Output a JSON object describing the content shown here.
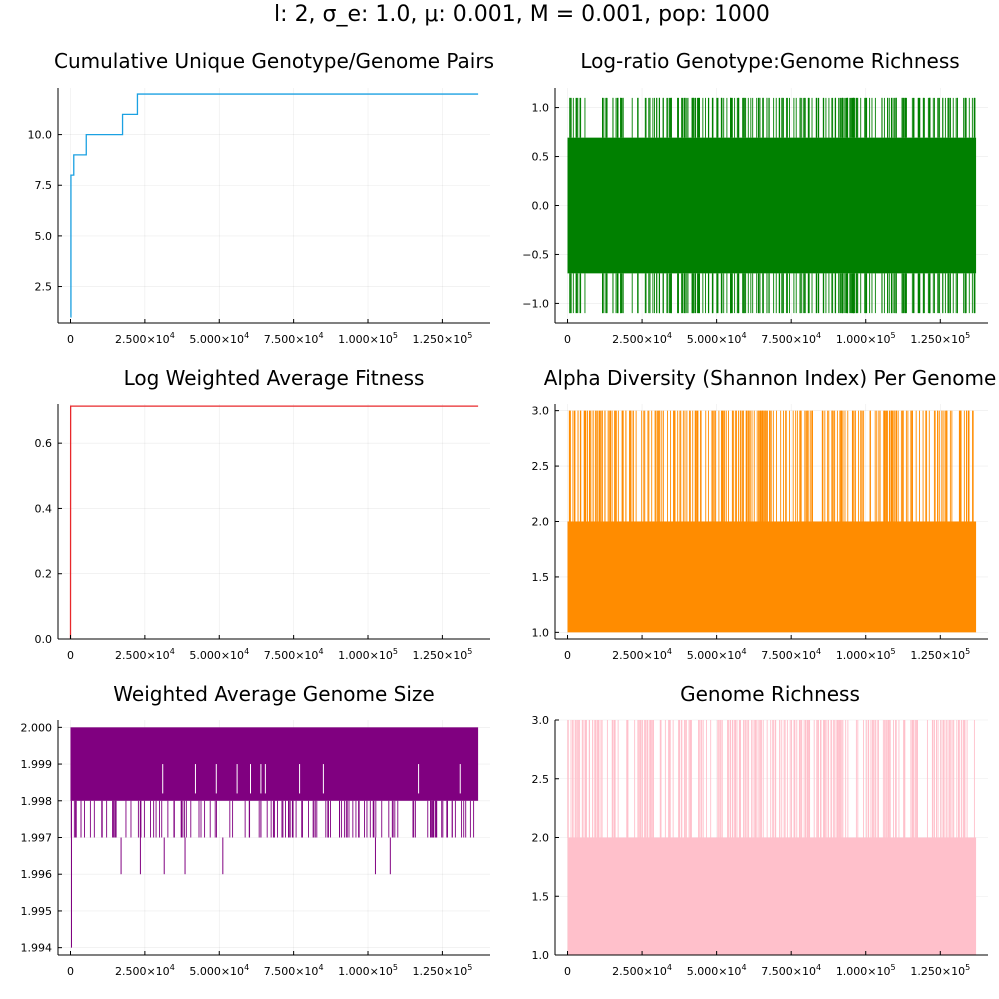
{
  "figure_title": "l: 2, σ_e: 1.0, μ: 0.001, M = 0.001, pop: 1000",
  "chart_data": [
    {
      "type": "line",
      "title": "Cumulative Unique Genotype/Genome Pairs",
      "color": "#1ba1e2",
      "render": "step",
      "xlim": [
        -4200,
        141000
      ],
      "ylim": [
        0.7,
        12.3
      ],
      "xticks": [
        0,
        25000,
        50000,
        75000,
        100000,
        125000
      ],
      "xtick_labels": [
        {
          "base": "0",
          "exp": ""
        },
        {
          "base": "2.500×10",
          "exp": "4"
        },
        {
          "base": "5.000×10",
          "exp": "4"
        },
        {
          "base": "7.500×10",
          "exp": "4"
        },
        {
          "base": "1.000×10",
          "exp": "5"
        },
        {
          "base": "1.250×10",
          "exp": "5"
        }
      ],
      "yticks": [
        2.5,
        5.0,
        7.5,
        10.0
      ],
      "ytick_labels": [
        "2.5",
        "5.0",
        "7.5",
        "10.0"
      ],
      "x": [
        0,
        150,
        150,
        1100,
        1100,
        5300,
        5300,
        17500,
        17500,
        22500,
        22500,
        137000
      ],
      "y": [
        1,
        1,
        8,
        8,
        9,
        9,
        10,
        10,
        11,
        11,
        12,
        12
      ]
    },
    {
      "type": "line",
      "title": "Log-ratio Genotype:Genome Richness",
      "color": "#008000",
      "render": "band",
      "xlim": [
        -4200,
        141000
      ],
      "ylim": [
        -1.2,
        1.2
      ],
      "xticks": [
        0,
        25000,
        50000,
        75000,
        100000,
        125000
      ],
      "xtick_labels": [
        {
          "base": "0",
          "exp": ""
        },
        {
          "base": "2.500×10",
          "exp": "4"
        },
        {
          "base": "5.000×10",
          "exp": "4"
        },
        {
          "base": "7.500×10",
          "exp": "4"
        },
        {
          "base": "1.000×10",
          "exp": "5"
        },
        {
          "base": "1.250×10",
          "exp": "5"
        }
      ],
      "yticks": [
        -1.0,
        -0.5,
        0.0,
        0.5,
        1.0
      ],
      "ytick_labels": [
        "−1.0",
        "−0.5",
        "0.0",
        "0.5",
        "1.0"
      ],
      "band": {
        "x_start": 0,
        "x_end": 137000,
        "core_low": -0.693,
        "core_high": 0.693,
        "spike_high": 1.099,
        "spike_low": -1.099
      }
    },
    {
      "type": "line",
      "title": "Log Weighted Average Fitness",
      "color": "#e8282b",
      "render": "line",
      "xlim": [
        -4200,
        141000
      ],
      "ylim": [
        0,
        0.72
      ],
      "xticks": [
        0,
        25000,
        50000,
        75000,
        100000,
        125000
      ],
      "xtick_labels": [
        {
          "base": "0",
          "exp": ""
        },
        {
          "base": "2.500×10",
          "exp": "4"
        },
        {
          "base": "5.000×10",
          "exp": "4"
        },
        {
          "base": "7.500×10",
          "exp": "4"
        },
        {
          "base": "1.000×10",
          "exp": "5"
        },
        {
          "base": "1.250×10",
          "exp": "5"
        }
      ],
      "yticks": [
        0.0,
        0.2,
        0.4,
        0.6
      ],
      "ytick_labels": [
        "0.0",
        "0.2",
        "0.4",
        "0.6"
      ],
      "x": [
        0,
        50,
        137000
      ],
      "y": [
        0,
        0.7136,
        0.7136
      ]
    },
    {
      "type": "line",
      "title": "Alpha Diversity (Shannon Index) Per Genome",
      "color": "#ff8c00",
      "render": "band",
      "xlim": [
        -4200,
        141000
      ],
      "ylim": [
        0.94,
        3.06
      ],
      "xticks": [
        0,
        25000,
        50000,
        75000,
        100000,
        125000
      ],
      "xtick_labels": [
        {
          "base": "0",
          "exp": ""
        },
        {
          "base": "2.500×10",
          "exp": "4"
        },
        {
          "base": "5.000×10",
          "exp": "4"
        },
        {
          "base": "7.500×10",
          "exp": "4"
        },
        {
          "base": "1.000×10",
          "exp": "5"
        },
        {
          "base": "1.250×10",
          "exp": "5"
        }
      ],
      "yticks": [
        1.0,
        1.5,
        2.0,
        2.5,
        3.0
      ],
      "ytick_labels": [
        "1.0",
        "1.5",
        "2.0",
        "2.5",
        "3.0"
      ],
      "band": {
        "x_start": 0,
        "x_end": 137000,
        "core_low": 1.0,
        "core_high": 2.0,
        "spike_high": 3.0,
        "spike_low": null
      }
    },
    {
      "type": "line",
      "title": "Weighted Average Genome Size",
      "color": "#800080",
      "render": "band",
      "xlim": [
        -4200,
        141000
      ],
      "ylim": [
        1.9938,
        2.0002
      ],
      "xticks": [
        0,
        25000,
        50000,
        75000,
        100000,
        125000
      ],
      "xtick_labels": [
        {
          "base": "0",
          "exp": ""
        },
        {
          "base": "2.500×10",
          "exp": "4"
        },
        {
          "base": "5.000×10",
          "exp": "4"
        },
        {
          "base": "7.500×10",
          "exp": "4"
        },
        {
          "base": "1.000×10",
          "exp": "5"
        },
        {
          "base": "1.250×10",
          "exp": "5"
        }
      ],
      "yticks": [
        1.994,
        1.995,
        1.996,
        1.997,
        1.998,
        1.999,
        2.0
      ],
      "ytick_labels": [
        "1.994",
        "1.995",
        "1.996",
        "1.997",
        "1.998",
        "1.999",
        "2.000"
      ],
      "band": {
        "x_start": 0,
        "x_end": 137000,
        "core_low": 1.998,
        "core_high": 2.0,
        "spike_high": null,
        "spike_low": 1.997
      },
      "deep_dips_x": [
        17000,
        23500,
        31500,
        38500,
        51200,
        102500,
        107500
      ],
      "deep_dips_y": 1.996,
      "start_dip_y": 1.994,
      "upper_notches_x": [
        31000,
        42000,
        49000,
        56000,
        60500,
        64000,
        65500,
        77000,
        85000,
        117000,
        131000
      ]
    },
    {
      "type": "line",
      "title": "Genome Richness",
      "color": "#ffc0cb",
      "render": "band",
      "xlim": [
        -4200,
        141000
      ],
      "ylim": [
        1.0,
        3.0
      ],
      "xticks": [
        0,
        25000,
        50000,
        75000,
        100000,
        125000
      ],
      "xtick_labels": [
        {
          "base": "0",
          "exp": ""
        },
        {
          "base": "2.500×10",
          "exp": "4"
        },
        {
          "base": "5.000×10",
          "exp": "4"
        },
        {
          "base": "7.500×10",
          "exp": "4"
        },
        {
          "base": "1.000×10",
          "exp": "5"
        },
        {
          "base": "1.250×10",
          "exp": "5"
        }
      ],
      "yticks": [
        1.0,
        1.5,
        2.0,
        2.5,
        3.0
      ],
      "ytick_labels": [
        "1.0",
        "1.5",
        "2.0",
        "2.5",
        "3.0"
      ],
      "band": {
        "x_start": 0,
        "x_end": 137000,
        "core_low": 1.0,
        "core_high": 2.0,
        "spike_high": 3.0,
        "spike_low": null
      }
    }
  ]
}
